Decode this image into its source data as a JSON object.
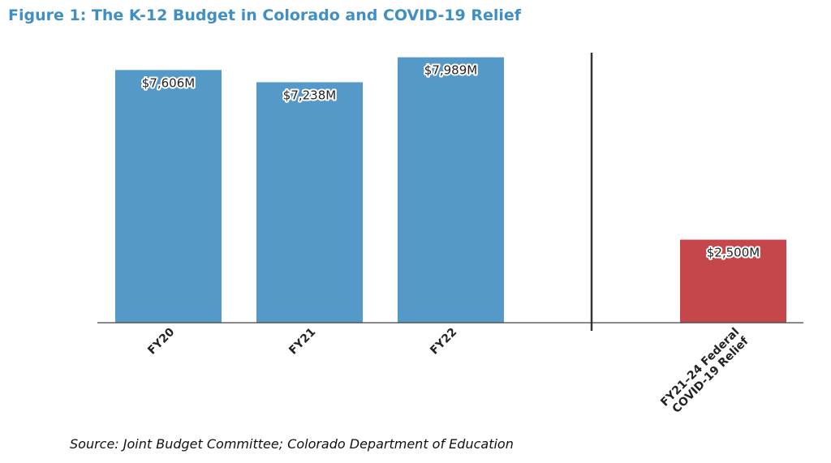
{
  "title": "Figure 1: The K-12 Budget in Colorado and COVID-19 Relief",
  "source": "Source: Joint Budget Committee; Colorado Department of Education",
  "colors": {
    "title": "#3f8fc4",
    "budget_bar": "#5499c7",
    "relief_bar": "#c5474b"
  },
  "chart_data": {
    "type": "bar",
    "title": "Figure 1: The K-12 Budget in Colorado and COVID-19 Relief",
    "xlabel": "",
    "ylabel": "",
    "ylim": [
      0,
      8200
    ],
    "grid": false,
    "categories": [
      "FY20",
      "FY21",
      "FY22",
      "FY21–24 Federal COVID-19 Relief"
    ],
    "values": [
      7606,
      7238,
      7989,
      2500
    ],
    "labels": [
      "$7,606M",
      "$7,238M",
      "$7,989M",
      "$2,500M"
    ],
    "category_lines": [
      [
        "FY20"
      ],
      [
        "FY21"
      ],
      [
        "FY22"
      ],
      [
        "FY21–24 Federal",
        "COVID-19 Relief"
      ]
    ],
    "bar_colors": [
      "#5499c7",
      "#5499c7",
      "#5499c7",
      "#c5474b"
    ],
    "separator_after_index": 2
  }
}
